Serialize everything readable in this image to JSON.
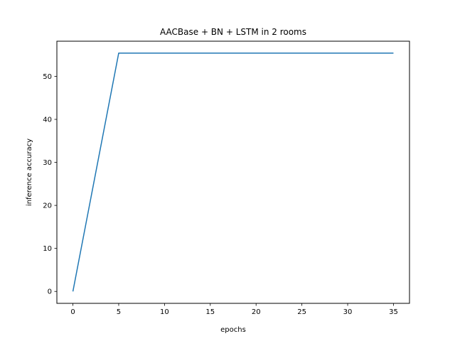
{
  "chart_data": {
    "type": "line",
    "title": "AACBase + BN + LSTM in 2 rooms",
    "xlabel": "epochs",
    "ylabel": "inference accuracy",
    "xlim": [
      -1.75,
      36.75
    ],
    "ylim": [
      -2.77,
      58.17
    ],
    "xticks": [
      0,
      5,
      10,
      15,
      20,
      25,
      30,
      35
    ],
    "yticks": [
      0,
      10,
      20,
      30,
      40,
      50
    ],
    "grid": false,
    "legend": "none",
    "series": [
      {
        "color": "#1f77b4",
        "x": [
          0,
          5,
          10,
          15,
          20,
          25,
          30,
          35
        ],
        "y": [
          0,
          55.4,
          55.4,
          55.4,
          55.4,
          55.4,
          55.4,
          55.4
        ]
      }
    ]
  }
}
